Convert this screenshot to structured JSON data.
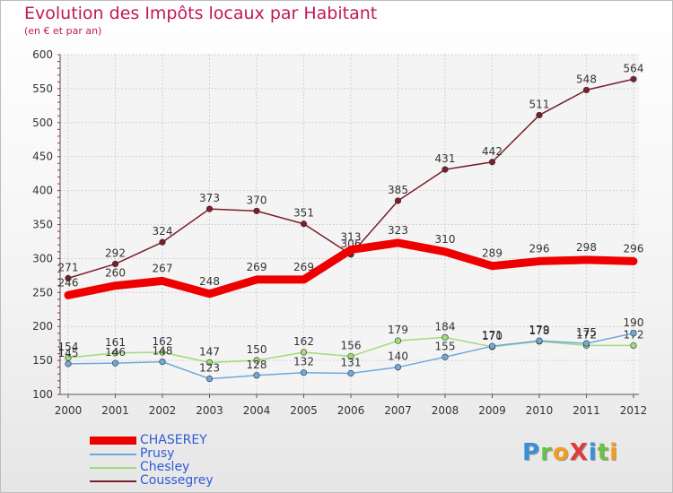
{
  "chart_data": {
    "type": "line",
    "title": "Evolution des Impôts locaux par Habitant",
    "subtitle": "(en € et par an)",
    "categories": [
      "2000",
      "2001",
      "2002",
      "2003",
      "2004",
      "2005",
      "2006",
      "2007",
      "2008",
      "2009",
      "2010",
      "2011",
      "2012"
    ],
    "ylim": [
      100,
      600
    ],
    "yticks": [
      100,
      150,
      200,
      250,
      300,
      350,
      400,
      450,
      500,
      550,
      600
    ],
    "grid": true,
    "legend_position": "bottom-left",
    "series": [
      {
        "name": "Coussegrey",
        "color": "#7a1f2b",
        "values": [
          271,
          292,
          324,
          373,
          370,
          351,
          306,
          385,
          431,
          442,
          511,
          548,
          564
        ]
      },
      {
        "name": "Chesley",
        "color": "#9fdc7a",
        "values": [
          154,
          161,
          162,
          147,
          150,
          162,
          156,
          179,
          184,
          170,
          178,
          172,
          172
        ]
      },
      {
        "name": "Prusy",
        "color": "#6fa8dc",
        "values": [
          145,
          146,
          148,
          123,
          128,
          132,
          131,
          140,
          155,
          171,
          179,
          175,
          190
        ]
      },
      {
        "name": "CHASEREY",
        "color": "#ee0000",
        "values": [
          246,
          260,
          267,
          248,
          269,
          269,
          313,
          323,
          310,
          289,
          296,
          298,
          296
        ]
      }
    ]
  },
  "legend": {
    "items": [
      {
        "label": "CHASEREY",
        "color": "#ee0000"
      },
      {
        "label": "Prusy",
        "color": "#6fa8dc"
      },
      {
        "label": "Chesley",
        "color": "#9fdc7a"
      },
      {
        "label": "Coussegrey",
        "color": "#7a1f2b"
      }
    ]
  },
  "logo": {
    "text": "ProXiti",
    "letters": [
      {
        "ch": "P",
        "color": "#3a8fd8"
      },
      {
        "ch": "r",
        "color": "#6cc04a"
      },
      {
        "ch": "o",
        "color": "#f39c1f"
      },
      {
        "ch": "X",
        "color": "#e03a3a"
      },
      {
        "ch": "i",
        "color": "#3a8fd8"
      },
      {
        "ch": "t",
        "color": "#6cc04a"
      },
      {
        "ch": "i",
        "color": "#f39c1f"
      }
    ]
  }
}
